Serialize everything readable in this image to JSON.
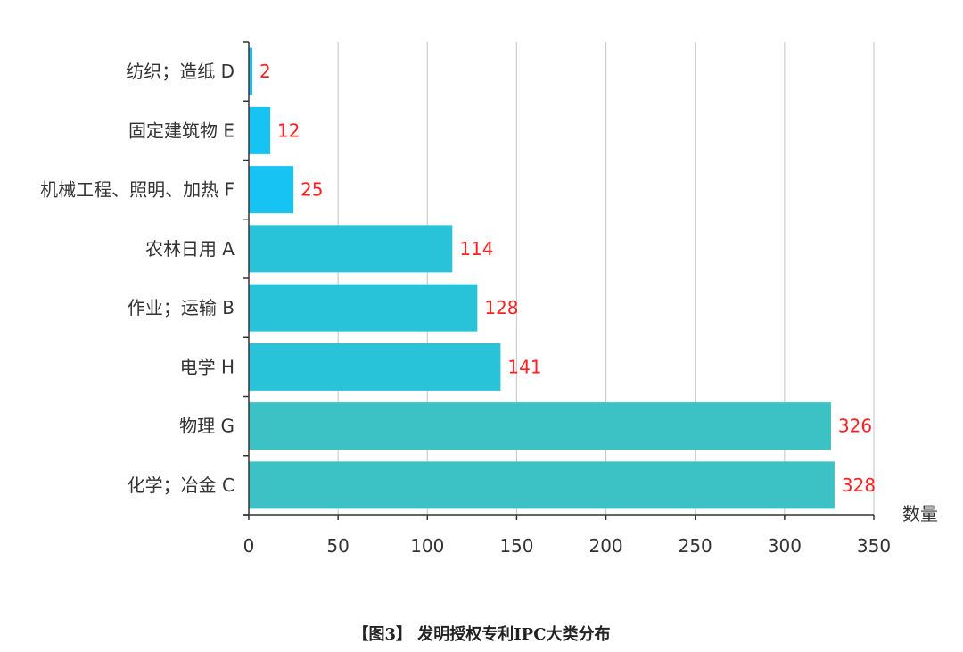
{
  "caption": "【图3】 发明授权专利IPC大类分布",
  "chart_data": {
    "type": "bar",
    "orientation": "horizontal",
    "categories": [
      "纺织；造纸 D",
      "固定建筑物 E",
      "机械工程、照明、加热 F",
      "农林日用 A",
      "作业；运输 B",
      "电学 H",
      "物理 G",
      "化学；冶金 C"
    ],
    "values": [
      2,
      12,
      25,
      114,
      128,
      141,
      326,
      328
    ],
    "bar_colors": [
      "#17c3f2",
      "#17c3f2",
      "#17c3f2",
      "#29c3d9",
      "#29c3d9",
      "#29c3d9",
      "#3cc2c4",
      "#3cc2c4"
    ],
    "label_color": "#ff2020",
    "xlabel": "数量",
    "ylabel": "",
    "xlim": [
      0,
      350
    ],
    "xticks": [
      0,
      50,
      100,
      150,
      200,
      250,
      300,
      350
    ],
    "grid": true,
    "legend": "none"
  }
}
